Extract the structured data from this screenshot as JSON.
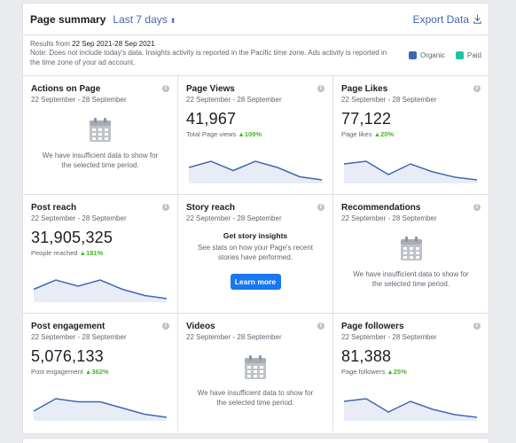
{
  "header": {
    "title": "Page summary",
    "range": "Last 7 days",
    "export": "Export Data"
  },
  "notes": {
    "results_prefix": "Results from ",
    "results_range": "22 Sep 2021-28 Sep 2021",
    "note": "Note: Does not include today's data. Insights activity is reported in the Pacific time zone. Ads activity is reported in the time zone of your ad account."
  },
  "legend": {
    "organic": "Organic",
    "paid": "Paid",
    "organic_color": "#4267b2",
    "paid_color": "#20c5a0"
  },
  "date_range": "22 September - 28 September",
  "empty_text": "We have insufficient data to show for the selected time period.",
  "cards": {
    "actions": {
      "title": "Actions on Page"
    },
    "views": {
      "title": "Page Views",
      "value": "41,967",
      "sub": "Total Page views",
      "change": "109%",
      "trend": [
        4,
        6,
        3,
        6,
        4,
        1,
        0
      ]
    },
    "likes": {
      "title": "Page Likes",
      "value": "77,122",
      "sub": "Page likes",
      "change": "20%",
      "trend": [
        6,
        7,
        2,
        6,
        3,
        1,
        0
      ]
    },
    "reach": {
      "title": "Post reach",
      "value": "31,905,325",
      "sub": "People reached",
      "change": "181%",
      "trend": [
        3,
        6,
        4,
        6,
        3,
        1,
        0
      ]
    },
    "story": {
      "title": "Story reach",
      "heading": "Get story insights",
      "text": "See stats on how your Page's recent stories have performed.",
      "button": "Learn more"
    },
    "recommendations": {
      "title": "Recommendations"
    },
    "engagement": {
      "title": "Post engagement",
      "value": "5,076,133",
      "sub": "Post engagement",
      "change": "362%",
      "trend": [
        2,
        6,
        5,
        5,
        3,
        1,
        0
      ]
    },
    "videos": {
      "title": "Videos"
    },
    "followers": {
      "title": "Page followers",
      "value": "81,388",
      "sub": "Page followers",
      "change": "25%",
      "trend": [
        6,
        7,
        2,
        6,
        3,
        1,
        0
      ]
    }
  },
  "icons": {
    "info": "info-icon",
    "calendar": "calendar-icon",
    "download": "download-icon",
    "up_arrow": "up-arrow-icon"
  }
}
